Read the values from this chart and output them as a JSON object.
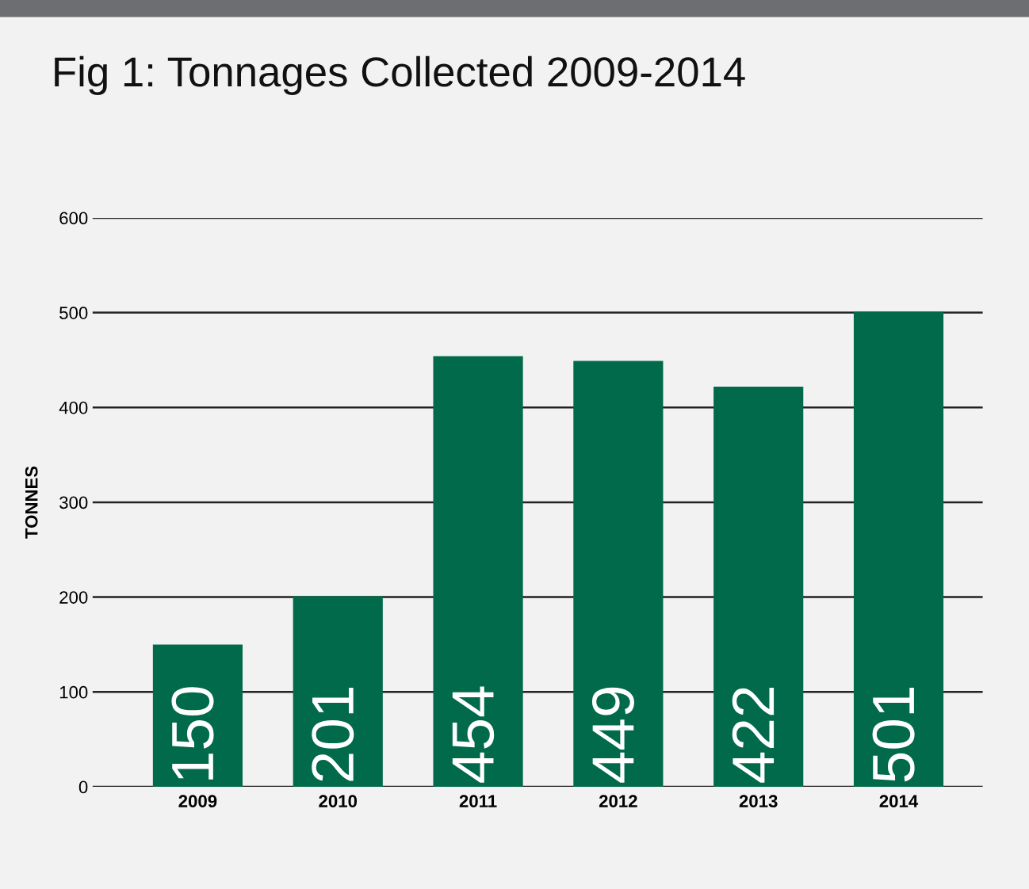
{
  "chart_data": {
    "type": "bar",
    "title": "Fig 1: Tonnages Collected 2009-2014",
    "ylabel": "TONNES",
    "categories": [
      "2009",
      "2010",
      "2011",
      "2012",
      "2013",
      "2014"
    ],
    "values": [
      150,
      201,
      454,
      449,
      422,
      501
    ],
    "color": "#006a4a",
    "ylim": [
      0,
      600
    ],
    "yticks": [
      0,
      100,
      200,
      300,
      400,
      500,
      600
    ],
    "grid": "y",
    "data_labels": true,
    "legend": false
  }
}
